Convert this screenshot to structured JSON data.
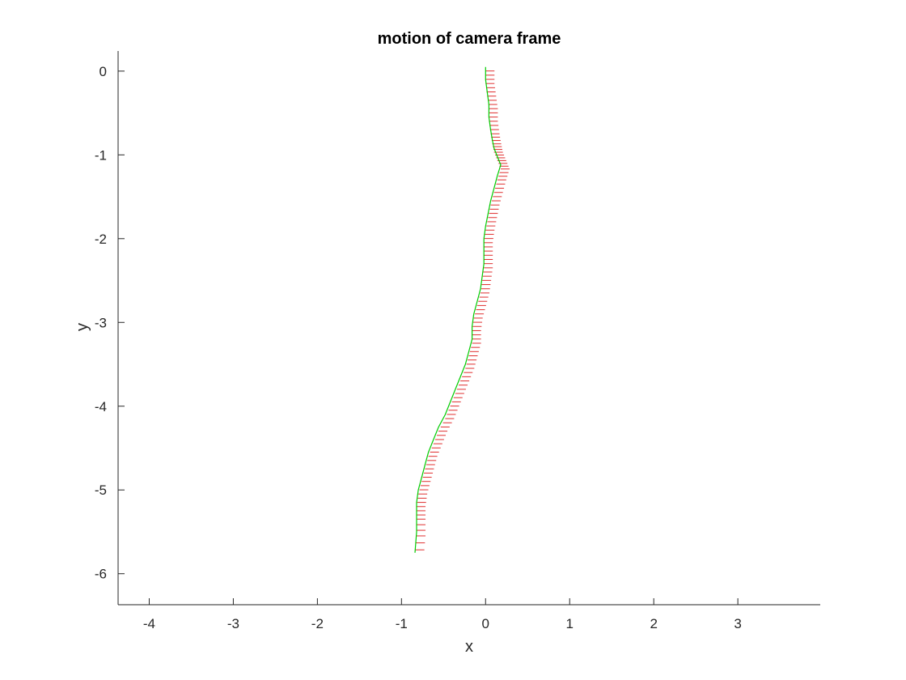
{
  "chart_data": {
    "type": "line",
    "title": "motion of camera frame",
    "xlabel": "x",
    "ylabel": "y",
    "xlim": [
      -4.37,
      3.98
    ],
    "ylim": [
      -6.37,
      0.24
    ],
    "xticks": [
      -4,
      -3,
      -2,
      -1,
      0,
      1,
      2,
      3
    ],
    "yticks": [
      0,
      -1,
      -2,
      -3,
      -4,
      -5,
      -6
    ],
    "xtick_labels": [
      "-4",
      "-3",
      "-2",
      "-1",
      "0",
      "1",
      "2",
      "3"
    ],
    "ytick_labels": [
      "0",
      "-1",
      "-2",
      "-3",
      "-4",
      "-5",
      "-6"
    ],
    "grid": false,
    "axis_color": "#262626",
    "series": [
      {
        "color": "#00cc00",
        "x": [
          0.0,
          0.0,
          0.02,
          0.04,
          0.04,
          0.06,
          0.08,
          0.1,
          0.14,
          0.18,
          0.14,
          0.1,
          0.06,
          0.03,
          0.0,
          -0.02,
          -0.02,
          -0.02,
          -0.04,
          -0.06,
          -0.1,
          -0.14,
          -0.16,
          -0.16,
          -0.2,
          -0.24,
          -0.3,
          -0.36,
          -0.42,
          -0.48,
          -0.56,
          -0.62,
          -0.68,
          -0.72,
          -0.76,
          -0.8,
          -0.82,
          -0.82,
          -0.82,
          -0.84
        ],
        "y": [
          0.05,
          -0.1,
          -0.25,
          -0.4,
          -0.55,
          -0.7,
          -0.82,
          -0.92,
          -1.02,
          -1.12,
          -1.25,
          -1.4,
          -1.55,
          -1.7,
          -1.85,
          -2.0,
          -2.15,
          -2.3,
          -2.45,
          -2.6,
          -2.75,
          -2.9,
          -3.05,
          -3.2,
          -3.35,
          -3.5,
          -3.65,
          -3.8,
          -3.95,
          -4.1,
          -4.25,
          -4.4,
          -4.55,
          -4.7,
          -4.85,
          -5.0,
          -5.15,
          -5.3,
          -5.5,
          -5.75
        ]
      }
    ]
  }
}
